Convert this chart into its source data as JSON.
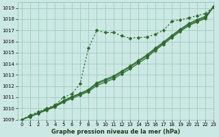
{
  "title": "Graphe pression niveau de la mer (hPa)",
  "bg_color": "#cce8e4",
  "grid_color": "#99ccbb",
  "line_color": "#2d6a2d",
  "xlim": [
    -0.5,
    23
  ],
  "ylim": [
    1009,
    1019.5
  ],
  "xticks": [
    0,
    1,
    2,
    3,
    4,
    5,
    6,
    7,
    8,
    9,
    10,
    11,
    12,
    13,
    14,
    15,
    16,
    17,
    18,
    19,
    20,
    21,
    22,
    23
  ],
  "yticks": [
    1009,
    1010,
    1011,
    1012,
    1013,
    1014,
    1015,
    1016,
    1017,
    1018,
    1019
  ],
  "series": [
    [
      1009.0,
      1009.4,
      1009.7,
      1010.0,
      1010.3,
      1011.0,
      1011.3,
      1012.2,
      1015.4,
      1017.0,
      1016.8,
      1016.8,
      1016.5,
      1016.3,
      1016.35,
      1016.4,
      1016.65,
      1017.0,
      1017.8,
      1017.95,
      1018.1,
      1018.3,
      1018.5,
      1019.1
    ],
    [
      1009.0,
      1009.3,
      1009.6,
      1009.95,
      1010.25,
      1010.7,
      1011.05,
      1011.35,
      1011.7,
      1012.3,
      1012.6,
      1012.9,
      1013.35,
      1013.8,
      1014.3,
      1014.8,
      1015.4,
      1015.95,
      1016.55,
      1017.1,
      1017.6,
      1017.95,
      1018.25,
      1019.1
    ],
    [
      1009.0,
      1009.3,
      1009.6,
      1009.9,
      1010.2,
      1010.65,
      1011.0,
      1011.3,
      1011.6,
      1012.2,
      1012.5,
      1012.8,
      1013.25,
      1013.7,
      1014.2,
      1014.7,
      1015.3,
      1015.85,
      1016.45,
      1017.0,
      1017.5,
      1017.85,
      1018.15,
      1019.1
    ],
    [
      1009.0,
      1009.25,
      1009.55,
      1009.85,
      1010.15,
      1010.55,
      1010.9,
      1011.2,
      1011.5,
      1012.05,
      1012.35,
      1012.65,
      1013.1,
      1013.55,
      1014.05,
      1014.55,
      1015.2,
      1015.75,
      1016.35,
      1016.9,
      1017.4,
      1017.75,
      1018.05,
      1019.1
    ]
  ],
  "series_styles": [
    {
      "linestyle": "dashed",
      "marker": "D",
      "markersize": 2.5,
      "linewidth": 0.9,
      "dotted": true
    },
    {
      "linestyle": "solid",
      "marker": "D",
      "markersize": 2.5,
      "linewidth": 0.9,
      "dotted": false
    },
    {
      "linestyle": "solid",
      "marker": "D",
      "markersize": 2.5,
      "linewidth": 0.9,
      "dotted": false
    },
    {
      "linestyle": "solid",
      "marker": "D",
      "markersize": 2.5,
      "linewidth": 0.9,
      "dotted": false
    }
  ],
  "tick_fontsize": 5.0,
  "xlabel_fontsize": 6.0,
  "figsize": [
    3.2,
    2.0
  ],
  "dpi": 100
}
